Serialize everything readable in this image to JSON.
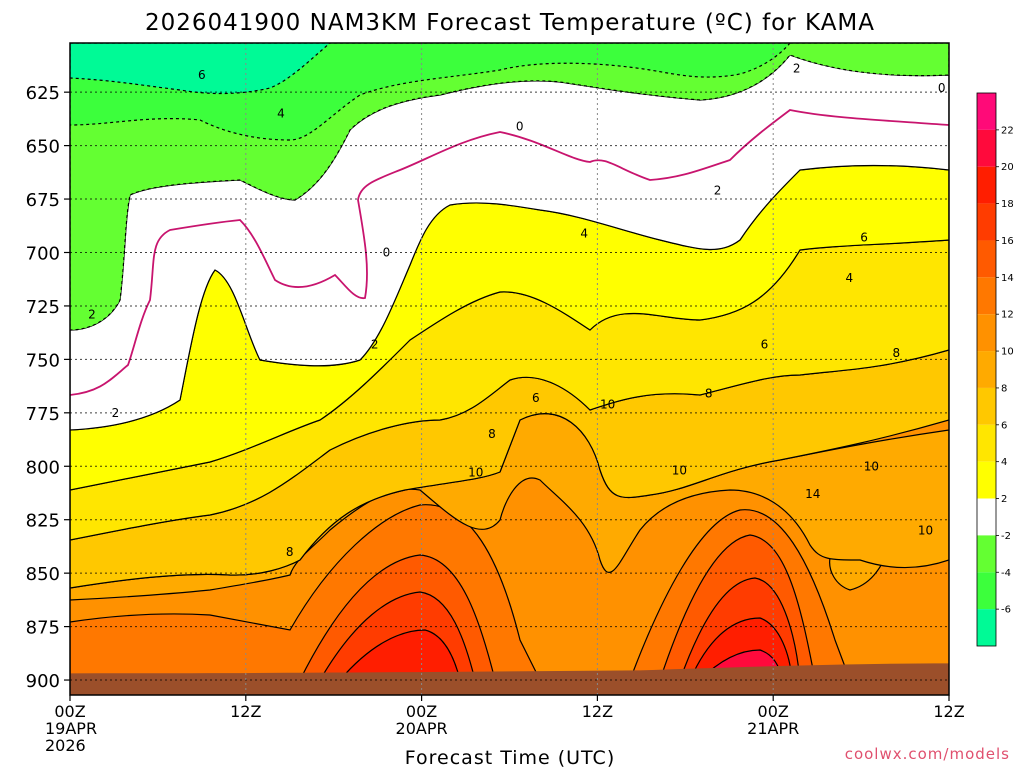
{
  "chart_data": {
    "type": "heatmap",
    "title": "2026041900 NAM3KM Forecast Temperature (ºC) for KAMA",
    "xlabel": "Forecast Time (UTC)",
    "ylabel": "",
    "credit": "coolwx.com/models",
    "x_axis": {
      "ticks": [
        {
          "hour": 0,
          "lines": [
            "00Z",
            "19APR",
            "2026"
          ]
        },
        {
          "hour": 12,
          "lines": [
            "12Z"
          ]
        },
        {
          "hour": 24,
          "lines": [
            "00Z",
            "20APR"
          ]
        },
        {
          "hour": 36,
          "lines": [
            "12Z"
          ]
        },
        {
          "hour": 48,
          "lines": [
            "00Z",
            "21APR"
          ]
        },
        {
          "hour": 60,
          "lines": [
            "12Z"
          ]
        }
      ],
      "range": [
        0,
        60
      ]
    },
    "y_axis": {
      "ticks": [
        625,
        650,
        675,
        700,
        725,
        750,
        775,
        800,
        825,
        850,
        875,
        900
      ],
      "range": [
        602,
        907
      ],
      "reversed": true,
      "grid": true
    },
    "colorbar": {
      "labels": [
        "22",
        "20",
        "18",
        "16",
        "14",
        "12",
        "10",
        "8",
        "6",
        "4",
        "2",
        "-2",
        "-4",
        "-6"
      ],
      "levels": [
        {
          "min": -8,
          "max": -6,
          "color": "#00fa96"
        },
        {
          "min": -6,
          "max": -4,
          "color": "#3cff3c"
        },
        {
          "min": -4,
          "max": -2,
          "color": "#64ff32"
        },
        {
          "min": -2,
          "max": 2,
          "color": "#ffffff"
        },
        {
          "min": 2,
          "max": 4,
          "color": "#ffff00"
        },
        {
          "min": 4,
          "max": 6,
          "color": "#ffe600"
        },
        {
          "min": 6,
          "max": 8,
          "color": "#ffc800"
        },
        {
          "min": 8,
          "max": 10,
          "color": "#ffaa00"
        },
        {
          "min": 10,
          "max": 12,
          "color": "#ff9100"
        },
        {
          "min": 12,
          "max": 14,
          "color": "#ff7800"
        },
        {
          "min": 14,
          "max": 16,
          "color": "#ff5a00"
        },
        {
          "min": 16,
          "max": 18,
          "color": "#ff3c00"
        },
        {
          "min": 18,
          "max": 20,
          "color": "#ff1e00"
        },
        {
          "min": 20,
          "max": 22,
          "color": "#ff0a3c"
        },
        {
          "min": 22,
          "max": 24,
          "color": "#ff0a78"
        }
      ]
    },
    "ground_pressure_hpa": 895,
    "ground_color": "#9b4f2a",
    "zero_contour_color": "#c8146e",
    "contour_labels": [
      {
        "hour": 9.0,
        "p": 617,
        "text": "6"
      },
      {
        "hour": 14.4,
        "p": 635,
        "text": "4"
      },
      {
        "hour": 49.6,
        "p": 614,
        "text": "2"
      },
      {
        "hour": 1.5,
        "p": 729,
        "text": "2"
      },
      {
        "hour": 3.1,
        "p": 775,
        "text": "2"
      },
      {
        "hour": 20.8,
        "p": 743,
        "text": "2"
      },
      {
        "hour": 44.2,
        "p": 671,
        "text": "2"
      },
      {
        "hour": 21.6,
        "p": 700,
        "text": "0"
      },
      {
        "hour": 30.7,
        "p": 641,
        "text": "0"
      },
      {
        "hour": 59.5,
        "p": 623,
        "text": "0"
      },
      {
        "hour": 35.1,
        "p": 691,
        "text": "4"
      },
      {
        "hour": 53.2,
        "p": 712,
        "text": "4"
      },
      {
        "hour": 31.8,
        "p": 768,
        "text": "6"
      },
      {
        "hour": 47.4,
        "p": 743,
        "text": "6"
      },
      {
        "hour": 54.2,
        "p": 693,
        "text": "6"
      },
      {
        "hour": 28.8,
        "p": 785,
        "text": "8"
      },
      {
        "hour": 43.6,
        "p": 766,
        "text": "8"
      },
      {
        "hour": 56.4,
        "p": 747,
        "text": "8"
      },
      {
        "hour": 15.0,
        "p": 840,
        "text": "8"
      },
      {
        "hour": 27.7,
        "p": 803,
        "text": "10"
      },
      {
        "hour": 36.7,
        "p": 771,
        "text": "10"
      },
      {
        "hour": 41.6,
        "p": 802,
        "text": "10"
      },
      {
        "hour": 54.7,
        "p": 800,
        "text": "10"
      },
      {
        "hour": 58.4,
        "p": 830,
        "text": "10"
      },
      {
        "hour": 50.7,
        "p": 813,
        "text": "14"
      }
    ]
  }
}
